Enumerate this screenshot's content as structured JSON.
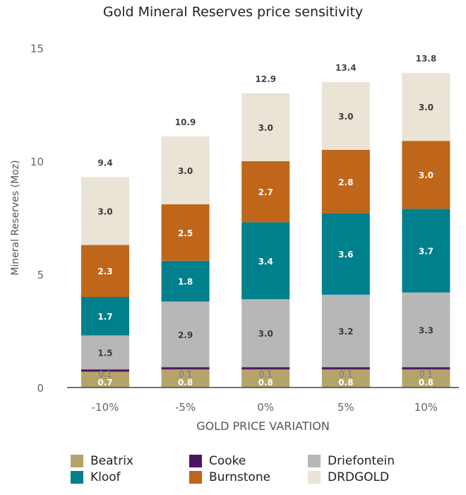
{
  "chart_data": {
    "type": "bar",
    "stacked": true,
    "title": "Gold Mineral Reserves price sensitivity",
    "xlabel": "GOLD PRICE VARIATION",
    "ylabel": "Mineral Reserves (Moz)",
    "ylim": [
      0,
      15
    ],
    "yticks": [
      "0",
      "5",
      "10",
      "15"
    ],
    "categories": [
      "-10%",
      "-5%",
      "0%",
      "5%",
      "10%"
    ],
    "totals": [
      "9.4",
      "10.9",
      "12.9",
      "13.4",
      "13.8"
    ],
    "series": [
      {
        "name": "Beatrix",
        "color": "#b5a46a",
        "values": [
          0.7,
          0.8,
          0.8,
          0.8,
          0.8
        ],
        "labels": [
          "0.7",
          "0.8",
          "0.8",
          "0.8",
          "0.8"
        ]
      },
      {
        "name": "Cooke",
        "color": "#4b1561",
        "values": [
          0.1,
          0.1,
          0.1,
          0.1,
          0.1
        ],
        "labels": [
          "0.1",
          "0.1",
          "0.1",
          "0.1",
          "0.1"
        ]
      },
      {
        "name": "Driefontein",
        "color": "#b7b7b7",
        "values": [
          1.5,
          2.9,
          3.0,
          3.2,
          3.3
        ],
        "labels": [
          "1.5",
          "2.9",
          "3.0",
          "3.2",
          "3.3"
        ]
      },
      {
        "name": "Kloof",
        "color": "#00808c",
        "values": [
          1.7,
          1.8,
          3.4,
          3.6,
          3.7
        ],
        "labels": [
          "1.7",
          "1.8",
          "3.4",
          "3.6",
          "3.7"
        ]
      },
      {
        "name": "Burnstone",
        "color": "#c0661a",
        "values": [
          2.3,
          2.5,
          2.7,
          2.8,
          3.0
        ],
        "labels": [
          "2.3",
          "2.5",
          "2.7",
          "2.8",
          "3.0"
        ]
      },
      {
        "name": "DRDGOLD",
        "color": "#e9e4d6",
        "values": [
          3.0,
          3.0,
          3.0,
          3.0,
          3.0
        ],
        "labels": [
          "3.0",
          "3.0",
          "3.0",
          "3.0",
          "3.0"
        ]
      }
    ],
    "legend": {
      "position": "bottom",
      "order": [
        "Beatrix",
        "Cooke",
        "Driefontein",
        "Kloof",
        "Burnstone",
        "DRDGOLD"
      ]
    }
  }
}
